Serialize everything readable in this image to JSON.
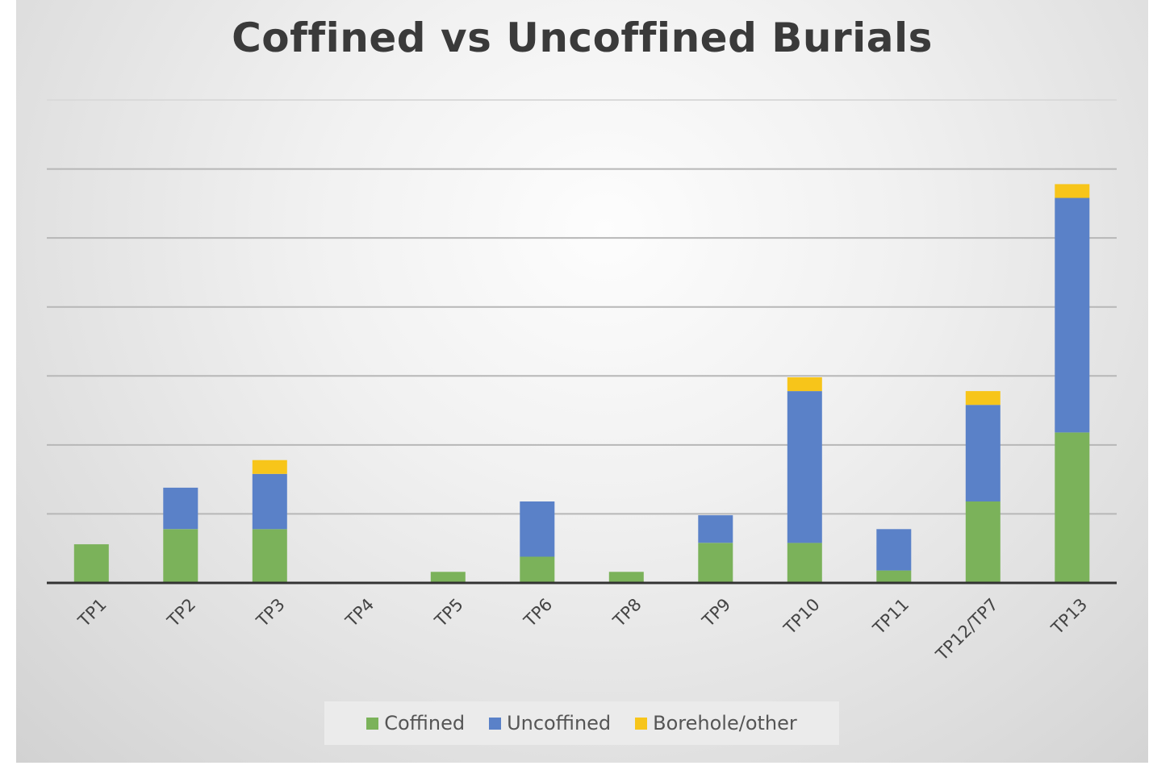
{
  "chart_data": {
    "type": "bar",
    "stacked": true,
    "title": "Coffined vs Uncoffined Burials",
    "xlabel": "",
    "ylabel": "",
    "categories": [
      "TP1",
      "TP2",
      "TP3",
      "TP4",
      "TP5",
      "TP6",
      "TP8",
      "TP9",
      "TP10",
      "TP11",
      "TP12/TP7",
      "TP13"
    ],
    "series": [
      {
        "name": "Coffined",
        "color": "#7bb25a",
        "values": [
          2.8,
          3.9,
          3.9,
          0,
          0.8,
          1.9,
          0.8,
          2.9,
          2.9,
          0.9,
          5.9,
          10.9
        ]
      },
      {
        "name": "Uncoffined",
        "color": "#5a81c8",
        "values": [
          0,
          3.0,
          4.0,
          0,
          0,
          4.0,
          0,
          2.0,
          11.0,
          3.0,
          7.0,
          17.0
        ]
      },
      {
        "name": "Borehole/other",
        "color": "#f7c51a",
        "values": [
          0,
          0,
          1.0,
          0,
          0,
          0,
          0,
          0,
          1.0,
          0,
          1.0,
          1.0
        ]
      }
    ],
    "ylim": [
      0,
      35
    ],
    "gridlines": [
      5,
      10,
      15,
      20,
      25,
      30,
      35
    ],
    "show_y_tick_labels": false,
    "grid": true,
    "legend": "bottom"
  }
}
